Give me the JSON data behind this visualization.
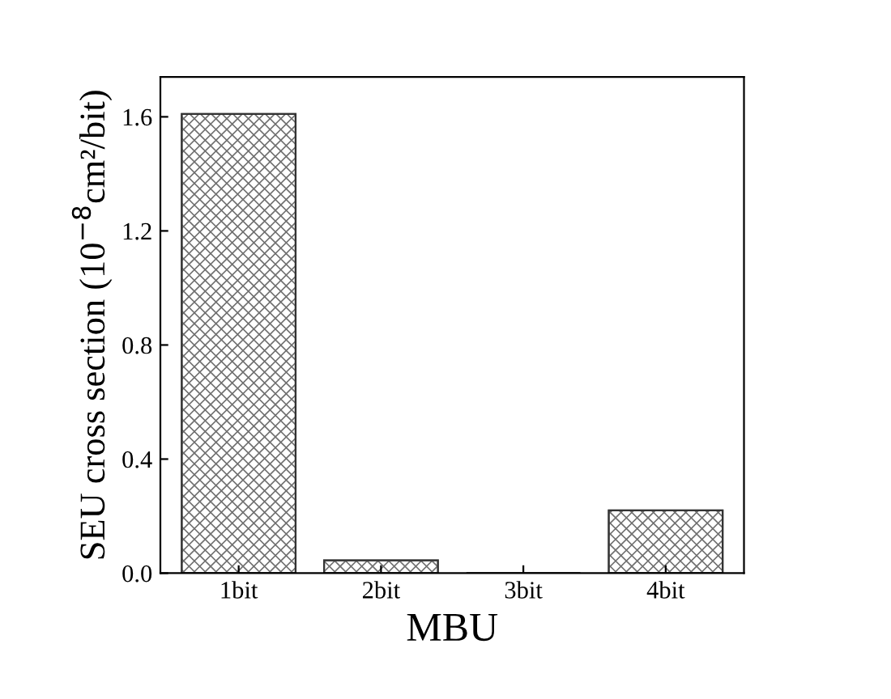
{
  "chart_data": {
    "type": "bar",
    "xlabel": "MBU",
    "ylabel": "SEU cross section (10$^{−8}$cm²/bit)",
    "categories": [
      "1bit",
      "2bit",
      "3bit",
      "4bit"
    ],
    "values": [
      1.61,
      0.045,
      0,
      0.22
    ],
    "color": "#707070",
    "ylim": [
      0,
      1.74
    ],
    "yticks": [
      {
        "value": 0,
        "label": "0.0"
      },
      0.4,
      0.8,
      1.2,
      1.6
    ],
    "grid": false
  }
}
